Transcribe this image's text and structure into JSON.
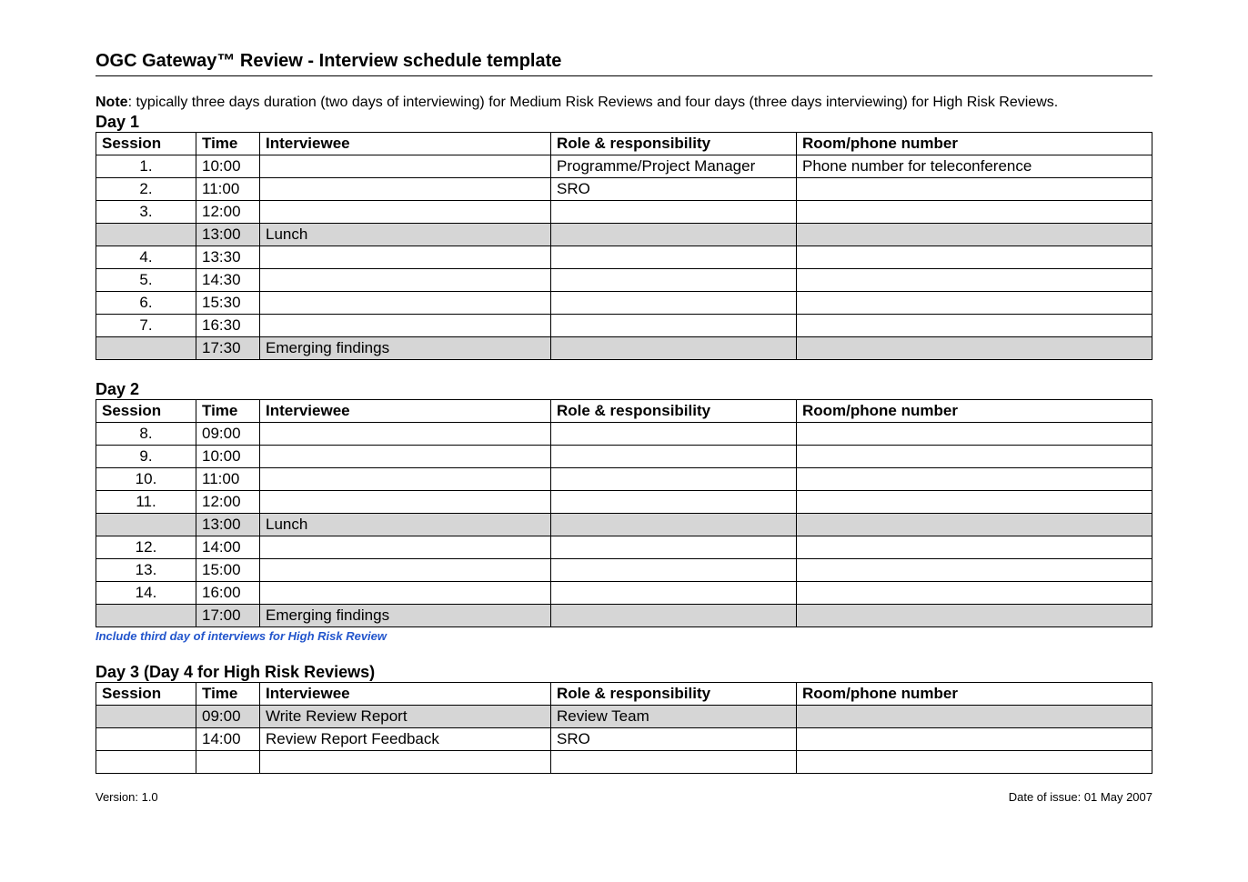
{
  "title": "OGC Gateway™ Review - Interview schedule template",
  "note_label": "Note",
  "note_text": ": typically three days duration (two days of interviewing) for Medium Risk Reviews and four days (three days interviewing) for High Risk Reviews.",
  "columns": {
    "session": "Session",
    "time": "Time",
    "interviewee": "Interviewee",
    "role": "Role & responsibility",
    "room": "Room/phone number"
  },
  "day1": {
    "heading": "Day 1",
    "rows": [
      {
        "session": "1.",
        "time": "10:00",
        "interviewee": "",
        "role": "Programme/Project Manager",
        "room": "Phone number for teleconference",
        "shaded": false
      },
      {
        "session": "2.",
        "time": "11:00",
        "interviewee": "",
        "role": "SRO",
        "room": "",
        "shaded": false
      },
      {
        "session": "3.",
        "time": "12:00",
        "interviewee": "",
        "role": "",
        "room": "",
        "shaded": false
      },
      {
        "session": "",
        "time": "13:00",
        "interviewee": "Lunch",
        "role": "",
        "room": "",
        "shaded": true
      },
      {
        "session": "4.",
        "time": "13:30",
        "interviewee": "",
        "role": "",
        "room": "",
        "shaded": false
      },
      {
        "session": "5.",
        "time": "14:30",
        "interviewee": "",
        "role": "",
        "room": "",
        "shaded": false
      },
      {
        "session": "6.",
        "time": "15:30",
        "interviewee": "",
        "role": "",
        "room": "",
        "shaded": false
      },
      {
        "session": "7.",
        "time": "16:30",
        "interviewee": "",
        "role": "",
        "room": "",
        "shaded": false
      },
      {
        "session": "",
        "time": "17:30",
        "interviewee": "Emerging findings",
        "role": "",
        "room": "",
        "shaded": true
      }
    ]
  },
  "day2": {
    "heading": "Day 2",
    "rows": [
      {
        "session": "8.",
        "time": "09:00",
        "interviewee": "",
        "role": "",
        "room": "",
        "shaded": false
      },
      {
        "session": "9.",
        "time": "10:00",
        "interviewee": "",
        "role": "",
        "room": "",
        "shaded": false
      },
      {
        "session": "10.",
        "time": "11:00",
        "interviewee": "",
        "role": "",
        "room": "",
        "shaded": false
      },
      {
        "session": "11.",
        "time": "12:00",
        "interviewee": "",
        "role": "",
        "room": "",
        "shaded": false
      },
      {
        "session": "",
        "time": "13:00",
        "interviewee": "Lunch",
        "role": "",
        "room": "",
        "shaded": true
      },
      {
        "session": "12.",
        "time": "14:00",
        "interviewee": "",
        "role": "",
        "room": "",
        "shaded": false
      },
      {
        "session": "13.",
        "time": "15:00",
        "interviewee": "",
        "role": "",
        "room": "",
        "shaded": false
      },
      {
        "session": "14.",
        "time": "16:00",
        "interviewee": "",
        "role": "",
        "room": "",
        "shaded": false
      },
      {
        "session": "",
        "time": "17:00",
        "interviewee": "Emerging findings",
        "role": "",
        "room": "",
        "shaded": true
      }
    ],
    "footnote": "Include third day of interviews for High Risk Review"
  },
  "day3": {
    "heading": "Day 3 (Day 4 for High Risk Reviews)",
    "rows": [
      {
        "session": "",
        "time": "09:00",
        "interviewee": "Write Review Report",
        "role": "Review Team",
        "room": "",
        "shaded": true
      },
      {
        "session": "",
        "time": "14:00",
        "interviewee": "Review Report Feedback",
        "role": "SRO",
        "room": "",
        "shaded": false
      },
      {
        "session": "",
        "time": "",
        "interviewee": "",
        "role": "",
        "room": "",
        "shaded": false
      }
    ]
  },
  "footer": {
    "version": "Version: 1.0",
    "issue": "Date of issue: 01 May 2007"
  },
  "style": {
    "shaded_bg": "#d6d6d6",
    "link_blue": "#2255cc",
    "border_color": "#000000",
    "page_bg": "#ffffff"
  }
}
